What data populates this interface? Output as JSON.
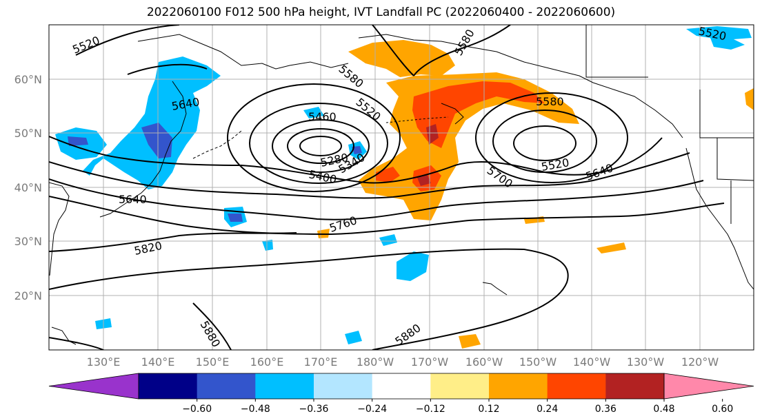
{
  "title": "2022060100 F012 500 hPa height, IVT Landfall PC (2022060400 - 2022060600)",
  "map": {
    "lat_labels": [
      "60°N",
      "50°N",
      "40°N",
      "30°N",
      "20°N"
    ],
    "lon_labels": [
      "130°E",
      "140°E",
      "150°E",
      "160°E",
      "170°E",
      "180°W",
      "170°W",
      "160°W",
      "150°W",
      "140°W",
      "130°W",
      "120°W"
    ]
  },
  "contours": {
    "labels": [
      "5520",
      "5640",
      "5460",
      "5580",
      "5520",
      "5280",
      "5340",
      "5400",
      "5640",
      "5760",
      "5820",
      "5880",
      "5880",
      "5580",
      "5520",
      "5640",
      "5700",
      "5520",
      "5580"
    ]
  },
  "colorbar": {
    "colors": [
      "#9933cc",
      "#000088",
      "#3355cc",
      "#00bfff",
      "#b3e6ff",
      "#ffffff",
      "#ffee88",
      "#ffa500",
      "#ff4500",
      "#b22222",
      "#ff88aa"
    ],
    "tick_labels": [
      "−0.60",
      "−0.48",
      "−0.36",
      "−0.24",
      "−0.12",
      "0.12",
      "0.24",
      "0.36",
      "0.48",
      "0.60"
    ]
  }
}
